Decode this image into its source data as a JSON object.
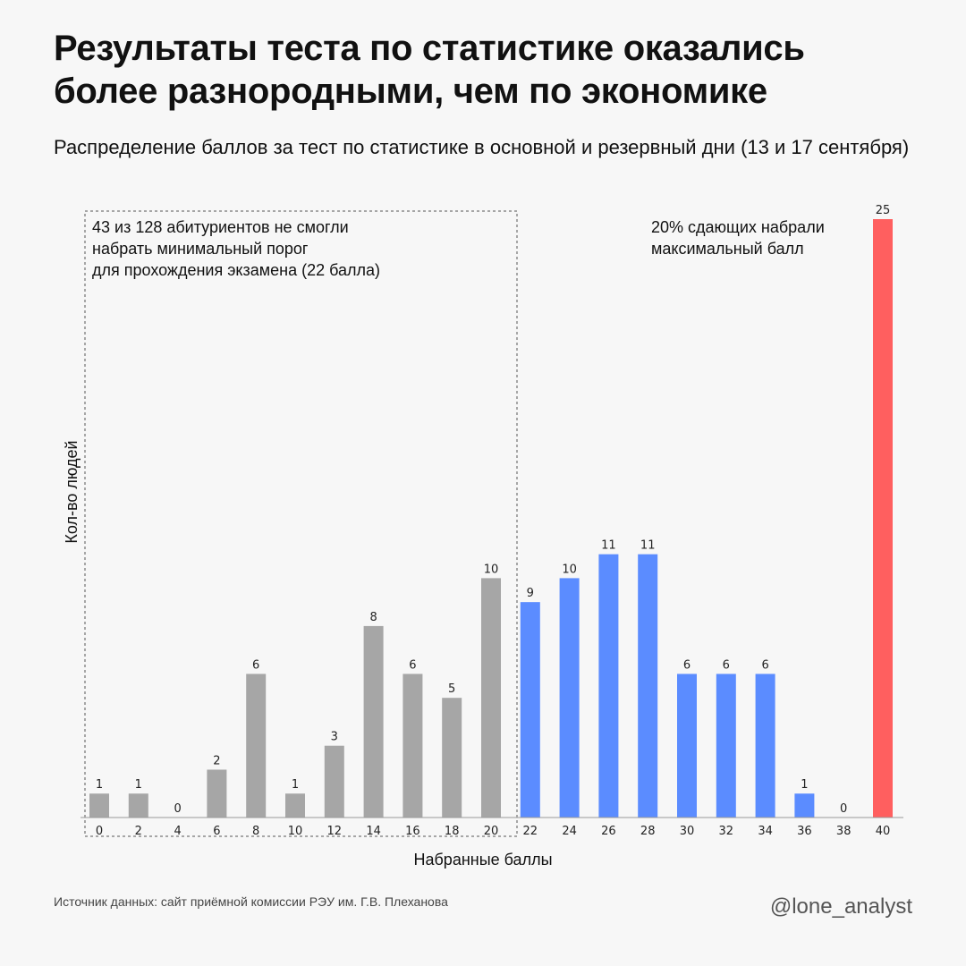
{
  "title": "Результаты теста по статистике оказались более разнородными, чем по экономике",
  "subtitle": "Распределение баллов за тест по статистике  в основной и резервный дни (13 и 17 сентября)",
  "annotation_fail": "43 из 128 абитуриентов не смогли\nнабрать минимальный порог\nдля прохождения экзамена (22 балла)",
  "annotation_max": "20% сдающих набрали\nмаксимальный балл",
  "source": "Источник данных: сайт приёмной комиссии РЭУ им. Г.В. Плеханова",
  "handle": "@lone_analyst",
  "colors": {
    "below_threshold": "#a6a6a6",
    "passed": "#5b8cff",
    "max_score": "#ff5f5f"
  },
  "chart_data": {
    "type": "bar",
    "xlabel": "Набранные баллы",
    "ylabel": "Кол-во людей",
    "categories": [
      "0",
      "2",
      "4",
      "6",
      "8",
      "10",
      "12",
      "14",
      "16",
      "18",
      "20",
      "22",
      "24",
      "26",
      "28",
      "30",
      "32",
      "34",
      "36",
      "38",
      "40"
    ],
    "values": [
      1,
      1,
      0,
      2,
      6,
      1,
      3,
      8,
      6,
      5,
      10,
      9,
      10,
      11,
      11,
      6,
      6,
      6,
      1,
      0,
      25
    ],
    "groups": [
      "below_threshold",
      "below_threshold",
      "below_threshold",
      "below_threshold",
      "below_threshold",
      "below_threshold",
      "below_threshold",
      "below_threshold",
      "below_threshold",
      "below_threshold",
      "below_threshold",
      "passed",
      "passed",
      "passed",
      "passed",
      "passed",
      "passed",
      "passed",
      "passed",
      "passed",
      "max_score"
    ],
    "ylim": [
      0,
      25
    ],
    "grid": false,
    "legend": "none"
  }
}
